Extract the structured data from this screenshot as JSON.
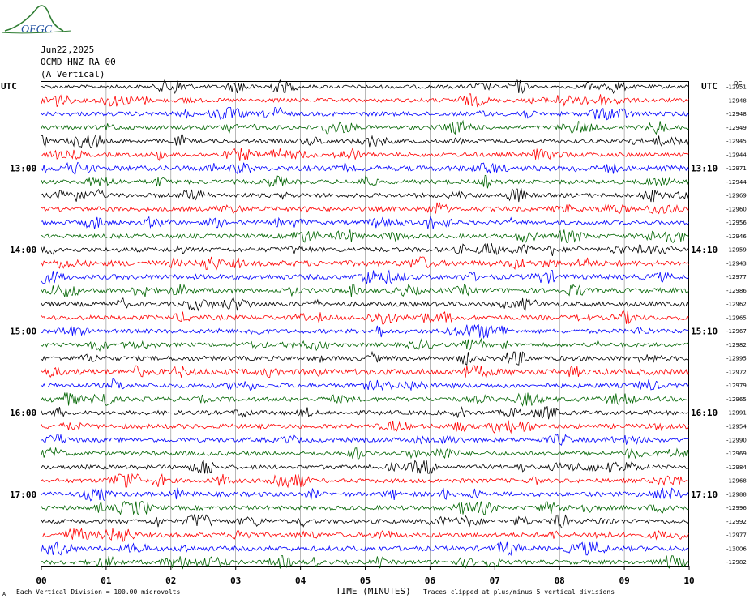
{
  "logo": {
    "text": "OFGC",
    "color": "#2e7d32",
    "text_color": "#1f4fa0"
  },
  "header": {
    "date": "Jun22,2025",
    "station": "OCMD HNZ RA 00",
    "component": "(A Vertical)",
    "left_tz": "UTC",
    "right_tz": "UTC",
    "offset_header": "DC"
  },
  "chart_data": {
    "type": "line",
    "title": "OCMD HNZ RA 00",
    "xlabel": "TIME (MINUTES)",
    "ylabel": "",
    "x_ticks": [
      "00",
      "01",
      "02",
      "03",
      "04",
      "05",
      "06",
      "07",
      "08",
      "09",
      "10"
    ],
    "xlim": [
      0,
      10
    ],
    "grid": true,
    "trace_colors": [
      "#000000",
      "#ff0000",
      "#0000ff",
      "#006400"
    ],
    "left_hour_labels": [
      {
        "row": 6,
        "label": "13:00"
      },
      {
        "row": 12,
        "label": "14:00"
      },
      {
        "row": 18,
        "label": "15:00"
      },
      {
        "row": 24,
        "label": "16:00"
      },
      {
        "row": 30,
        "label": "17:00"
      }
    ],
    "right_hour_labels": [
      {
        "row": 6,
        "label": "13:10"
      },
      {
        "row": 12,
        "label": "14:10"
      },
      {
        "row": 18,
        "label": "15:10"
      },
      {
        "row": 24,
        "label": "16:10"
      },
      {
        "row": 30,
        "label": "17:10"
      }
    ],
    "trace_offsets": [
      "-12951",
      "-12948",
      "-12948",
      "-12949",
      "-12945",
      "-12944",
      "-12971",
      "-12944",
      "-12969",
      "-12960",
      "-12956",
      "-12946",
      "-12959",
      "-12943",
      "-12977",
      "-12986",
      "-12962",
      "-12965",
      "-12967",
      "-12982",
      "-12995",
      "-12972",
      "-12979",
      "-12965",
      "-12991",
      "-12954",
      "-12990",
      "-12969",
      "-12984",
      "-12968",
      "-12988",
      "-12996",
      "-12992",
      "-12977",
      "-13006",
      "-12982"
    ],
    "trace_amplitudes": [
      2.2,
      2.4,
      2.6,
      2.6,
      2.4,
      2.6,
      3.2,
      2.6,
      2.6,
      2.8,
      2.6,
      2.6,
      2.8,
      3.4,
      3.0,
      3.0,
      2.8,
      2.8,
      2.6,
      2.4,
      2.8,
      3.6,
      2.8,
      2.8,
      2.6,
      2.8,
      2.8,
      2.6,
      2.6,
      2.6,
      2.8,
      2.6,
      2.6,
      2.8,
      3.0,
      2.6
    ]
  },
  "footer": {
    "scale_note": "Each Vertical Division =  100.00 microvolts",
    "clip_note": "Traces clipped at plus/minus 5 vertical divisions",
    "corner_mark": "A"
  }
}
